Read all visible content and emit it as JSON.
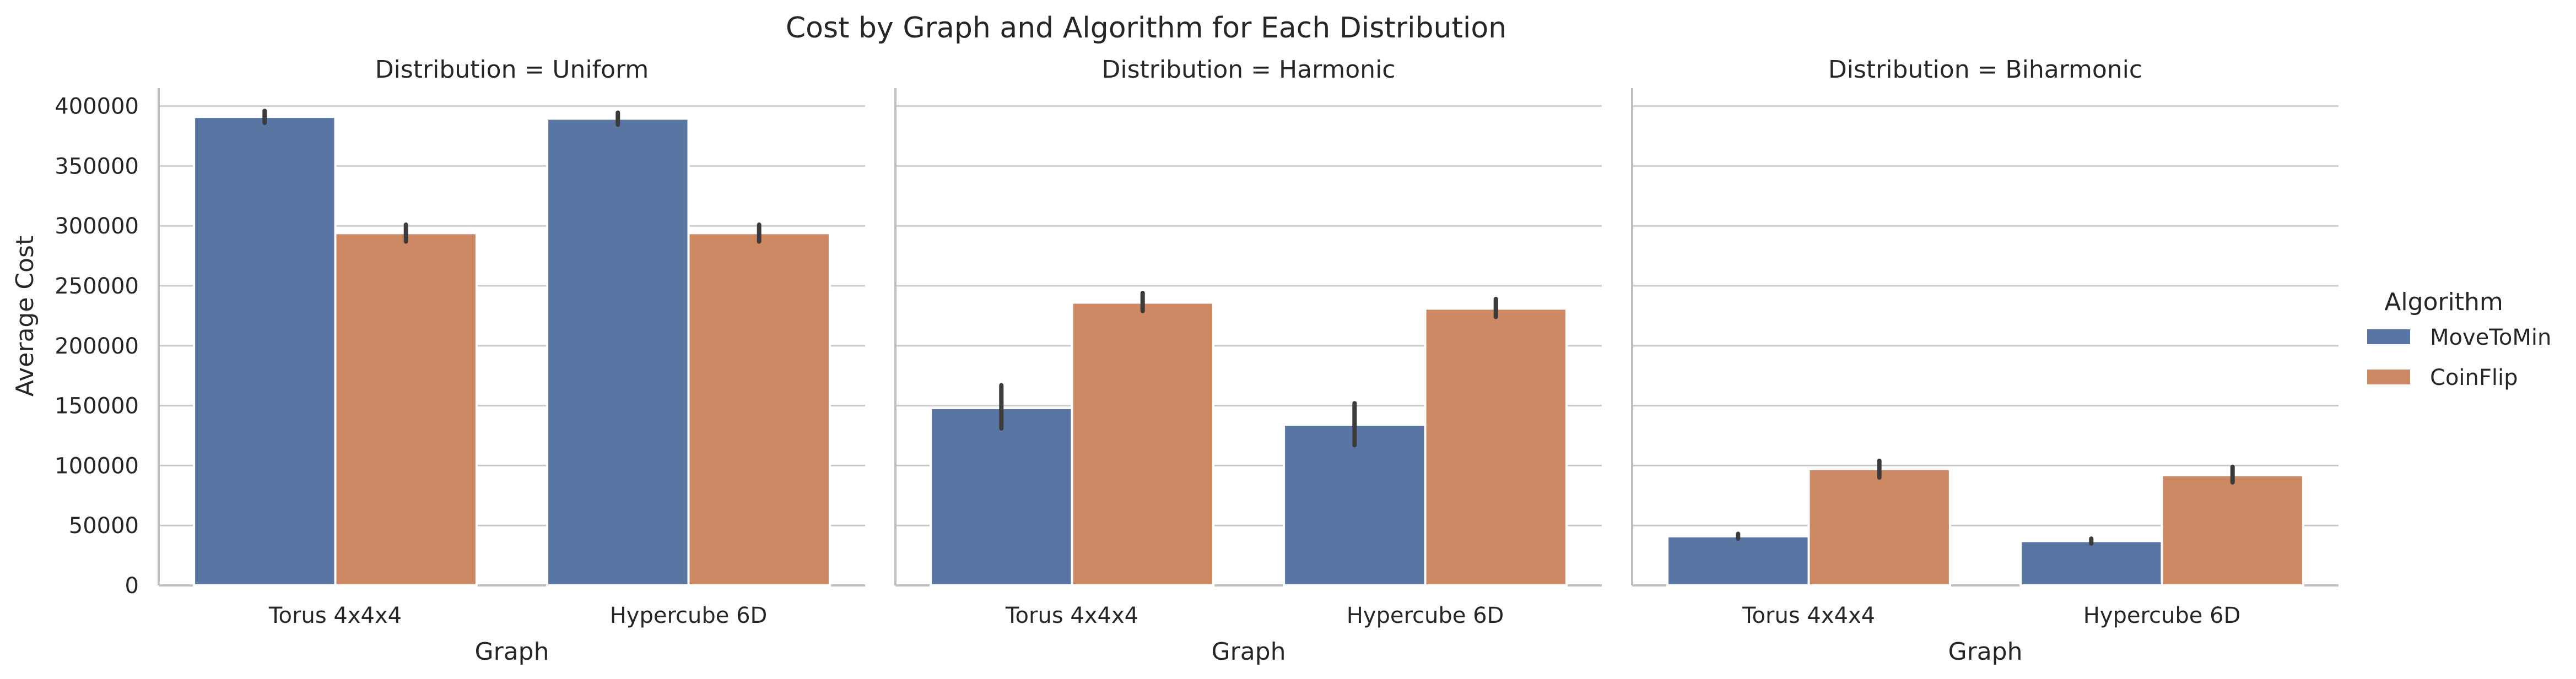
{
  "title": "Cost by Graph and Algorithm for Each Distribution",
  "legend": {
    "title": "Algorithm",
    "entries": [
      {
        "label": "MoveToMin",
        "color": "#5875a4"
      },
      {
        "label": "CoinFlip",
        "color": "#cc8963"
      }
    ]
  },
  "colors": {
    "MoveToMin": "#5875a4",
    "CoinFlip": "#cc8963",
    "grid": "#cccccc",
    "axis": "#bfbfbf",
    "errorbar": "#3b3b3b"
  },
  "chart_data": {
    "type": "bar",
    "layout": "faceted (1 row x 3 columns), shared y axis",
    "grid": true,
    "legend_position": "right",
    "xlabel": "Graph",
    "ylabel": "Average Cost",
    "ylim": [
      0,
      415000
    ],
    "yticks": [
      0,
      50000,
      100000,
      150000,
      200000,
      250000,
      300000,
      350000,
      400000
    ],
    "ytick_labels": [
      "0",
      "50000",
      "100000",
      "150000",
      "200000",
      "250000",
      "300000",
      "350000",
      "400000"
    ],
    "categories": [
      "Torus 4x4x4",
      "Hypercube 6D"
    ],
    "facets": [
      {
        "title": "Distribution = Uniform",
        "series": [
          {
            "name": "MoveToMin",
            "values": [
              391000,
              389500
            ],
            "err_low": [
              386000,
              384500
            ],
            "err_high": [
              396000,
              394500
            ]
          },
          {
            "name": "CoinFlip",
            "values": [
              294000,
              294000
            ],
            "err_low": [
              287000,
              287000
            ],
            "err_high": [
              301000,
              301000
            ]
          }
        ]
      },
      {
        "title": "Distribution = Harmonic",
        "series": [
          {
            "name": "MoveToMin",
            "values": [
              148000,
              134000
            ],
            "err_low": [
              131000,
              117000
            ],
            "err_high": [
              167000,
              152000
            ]
          },
          {
            "name": "CoinFlip",
            "values": [
              236000,
              231000
            ],
            "err_low": [
              229000,
              224000
            ],
            "err_high": [
              244000,
              239000
            ]
          }
        ]
      },
      {
        "title": "Distribution = Biharmonic",
        "series": [
          {
            "name": "MoveToMin",
            "values": [
              41000,
              37000
            ],
            "err_low": [
              39000,
              35000
            ],
            "err_high": [
              43000,
              39000
            ]
          },
          {
            "name": "CoinFlip",
            "values": [
              97000,
              92000
            ],
            "err_low": [
              90000,
              86000
            ],
            "err_high": [
              104000,
              99000
            ]
          }
        ]
      }
    ]
  }
}
